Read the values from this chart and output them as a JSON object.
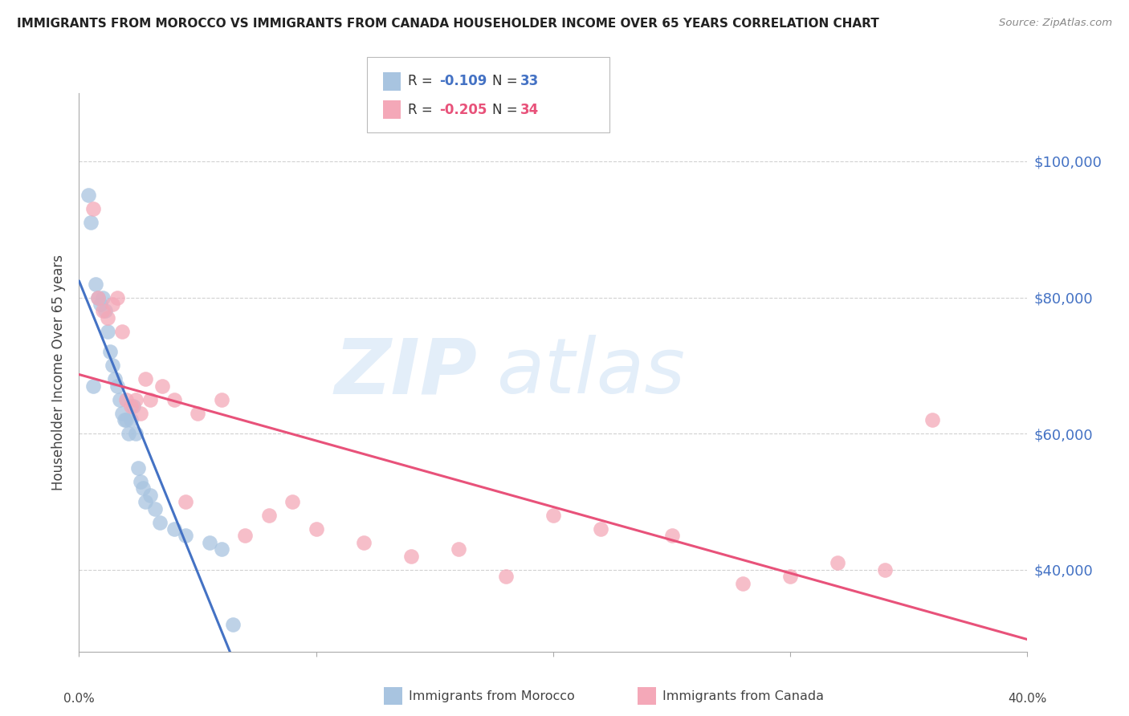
{
  "title": "IMMIGRANTS FROM MOROCCO VS IMMIGRANTS FROM CANADA HOUSEHOLDER INCOME OVER 65 YEARS CORRELATION CHART",
  "source": "Source: ZipAtlas.com",
  "ylabel": "Householder Income Over 65 years",
  "ytick_labels": [
    "$40,000",
    "$60,000",
    "$80,000",
    "$100,000"
  ],
  "ytick_values": [
    40000,
    60000,
    80000,
    100000
  ],
  "xlim": [
    0.0,
    0.4
  ],
  "ylim": [
    28000,
    110000
  ],
  "morocco_color": "#a8c4e0",
  "canada_color": "#f4a8b8",
  "morocco_line_color": "#4472c4",
  "canada_line_color": "#e8527a",
  "axis_label_color": "#4472c4",
  "grid_color": "#cccccc",
  "background_color": "#ffffff",
  "title_color": "#222222",
  "morocco_x": [
    0.004,
    0.005,
    0.006,
    0.007,
    0.008,
    0.009,
    0.01,
    0.011,
    0.012,
    0.013,
    0.014,
    0.015,
    0.016,
    0.017,
    0.018,
    0.019,
    0.02,
    0.021,
    0.022,
    0.023,
    0.024,
    0.025,
    0.026,
    0.027,
    0.028,
    0.03,
    0.032,
    0.034,
    0.04,
    0.045,
    0.055,
    0.06,
    0.065
  ],
  "morocco_y": [
    95000,
    91000,
    67000,
    82000,
    80000,
    79000,
    80000,
    78000,
    75000,
    72000,
    70000,
    68000,
    67000,
    65000,
    63000,
    62000,
    62000,
    60000,
    62000,
    64000,
    60000,
    55000,
    53000,
    52000,
    50000,
    51000,
    49000,
    47000,
    46000,
    45000,
    44000,
    43000,
    32000
  ],
  "canada_x": [
    0.006,
    0.008,
    0.01,
    0.012,
    0.014,
    0.016,
    0.018,
    0.02,
    0.022,
    0.024,
    0.026,
    0.028,
    0.03,
    0.035,
    0.04,
    0.045,
    0.05,
    0.06,
    0.07,
    0.08,
    0.09,
    0.1,
    0.12,
    0.14,
    0.16,
    0.18,
    0.2,
    0.22,
    0.25,
    0.28,
    0.3,
    0.32,
    0.34,
    0.36
  ],
  "canada_y": [
    93000,
    80000,
    78000,
    77000,
    79000,
    80000,
    75000,
    65000,
    64000,
    65000,
    63000,
    68000,
    65000,
    67000,
    65000,
    50000,
    63000,
    65000,
    45000,
    48000,
    50000,
    46000,
    44000,
    42000,
    43000,
    39000,
    48000,
    46000,
    45000,
    38000,
    39000,
    41000,
    40000,
    62000
  ],
  "morocco_R": -0.109,
  "canada_R": -0.205,
  "morocco_N": 33,
  "canada_N": 34
}
